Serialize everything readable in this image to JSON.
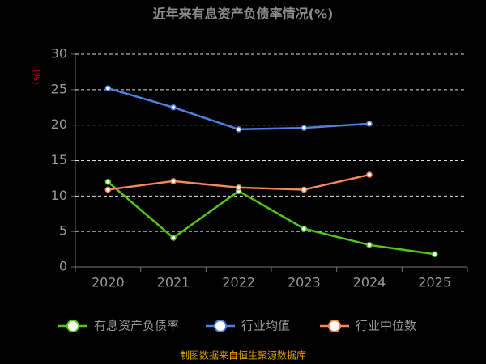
{
  "chart_data": {
    "type": "line",
    "title": "近年来有息资产负债率情况(%)",
    "y_label": "(%)",
    "source": "制图数据来自恒生聚源数据库",
    "categories": [
      "2020",
      "2021",
      "2022",
      "2023",
      "2024",
      "2025"
    ],
    "series": [
      {
        "name": "有息资产负债率",
        "color": "#52c41a",
        "values": [
          12.0,
          4.1,
          10.7,
          5.4,
          3.1,
          1.8
        ]
      },
      {
        "name": "行业均值",
        "color": "#4f7fe0",
        "values": [
          25.2,
          22.5,
          19.4,
          19.6,
          20.2,
          null
        ]
      },
      {
        "name": "行业中位数",
        "color": "#f0885a",
        "values": [
          10.9,
          12.1,
          11.2,
          10.9,
          13.0,
          null
        ]
      }
    ],
    "ylim": [
      0,
      30
    ],
    "yticks": [
      0,
      5,
      10,
      15,
      20,
      25,
      30
    ],
    "grid": true
  }
}
